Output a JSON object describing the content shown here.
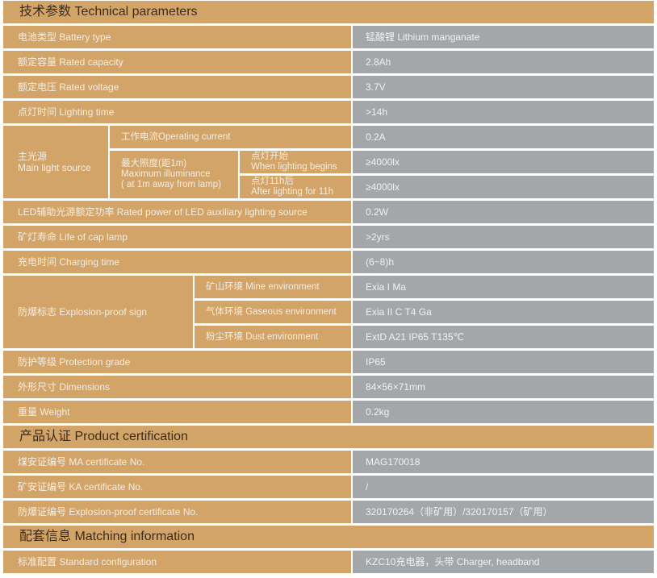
{
  "sections": {
    "technical": "技术参数  Technical parameters",
    "certification": "产品认证 Product certification",
    "matching": "配套信息 Matching information"
  },
  "rows": {
    "battery_type": {
      "label": "电池类型 Battery type",
      "value": "锰酸锂 Lithium manganate"
    },
    "rated_capacity": {
      "label": "额定容量 Rated capacity",
      "value": "2.8Ah"
    },
    "rated_voltage": {
      "label": "额定电压 Rated voltage",
      "value": "3.7V"
    },
    "lighting_time": {
      "label": "点灯时间 Lighting time",
      "value": ">14h"
    },
    "main_light": {
      "label_cn": "主光源",
      "label_en": "Main light source",
      "operating_current": {
        "label": "工作电流Operating current",
        "value": "0.2A"
      },
      "max_illuminance": {
        "line1": "最大照度(距1m)",
        "line2": "Maximum illuminance",
        "line3": "( at 1m away from lamp)"
      },
      "begin": {
        "cn": "点灯开始",
        "en": "When lighting begins",
        "value": "≥4000lx"
      },
      "after": {
        "cn": "点灯11h后",
        "en": "After lighting for 11h",
        "value": "≥4000lx"
      }
    },
    "led_power": {
      "label": "LED辅助光源额定功率 Rated power of LED auxiliary lighting source",
      "value": "0.2W"
    },
    "lamp_life": {
      "label": "矿灯寿命 Life of cap lamp",
      "value": ">2yrs"
    },
    "charging_time": {
      "label": "充电时间 Charging time",
      "value": "(6~8)h"
    },
    "explosion": {
      "label": "防爆标志 Explosion-proof sign",
      "mine": {
        "label": "矿山环境 Mine environment",
        "value": "Exia I Ma"
      },
      "gas": {
        "label": "气体环境 Gaseous environment",
        "value": "Exia II C T4 Ga"
      },
      "dust": {
        "label": "粉尘环境 Dust environment",
        "value": "ExtD A21 IP65 T135℃"
      }
    },
    "protection": {
      "label": "防护等级 Protection grade",
      "value": "IP65"
    },
    "dimensions": {
      "label": "外形尺寸 Dimensions",
      "value": "84×56×71mm"
    },
    "weight": {
      "label": "重量 Weight",
      "value": "0.2kg"
    },
    "ma_cert": {
      "label": "煤安证编号 MA certificate No.",
      "value": "MAG170018"
    },
    "ka_cert": {
      "label": "矿安证编号 KA certificate No.",
      "value": "/"
    },
    "ex_cert": {
      "label": "防爆证编号 Explosion-proof certificate No.",
      "value": "320170264（非矿用）/320170157（矿用）"
    },
    "standard": {
      "label": "标准配置 Standard configuration",
      "value": "KZC10充电器，头带   Charger, headband"
    }
  }
}
